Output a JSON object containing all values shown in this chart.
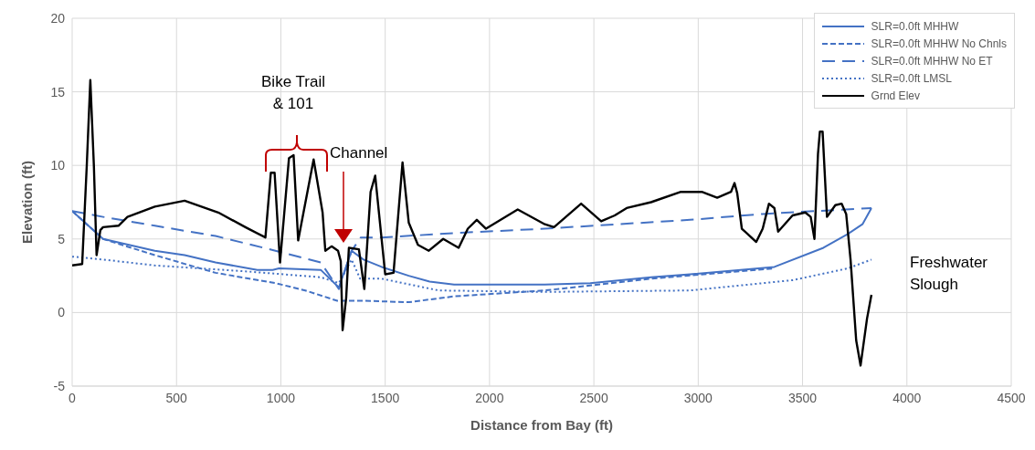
{
  "chart_data": {
    "type": "line",
    "xlabel": "Distance from Bay (ft)",
    "ylabel": "Elevation (ft)",
    "xlim": [
      0,
      4500
    ],
    "xticks": [
      0,
      500,
      1000,
      1500,
      2000,
      2500,
      3000,
      3500,
      4000,
      4500
    ],
    "ylim": [
      -5,
      20
    ],
    "yticks": [
      -5,
      0,
      5,
      10,
      15,
      20
    ],
    "grid": true,
    "legend": "top right",
    "marker": "none",
    "annotations": [
      "Bike Trail & 101",
      "Channel",
      "Freshwater Slough"
    ],
    "series": [
      {
        "name": "SLR=0.0ft MHHW",
        "color": "#4472c4",
        "line_style": "solid",
        "x": [
          0,
          148,
          396,
          539,
          687,
          887,
          961,
          991,
          1191,
          1278,
          1339,
          1396,
          1483,
          1613,
          1713,
          1830,
          2265,
          2483,
          2774,
          2961,
          3365,
          3600,
          3713,
          3787,
          3830
        ],
        "values": [
          6.9,
          5.0,
          4.2,
          3.9,
          3.4,
          2.9,
          2.9,
          3.0,
          2.9,
          1.7,
          4.2,
          3.6,
          3.1,
          2.5,
          2.1,
          1.9,
          1.9,
          2.0,
          2.4,
          2.6,
          3.1,
          4.4,
          5.3,
          6.0,
          7.1
        ]
      },
      {
        "name": "SLR=0.0ft MHHW No Chnls",
        "color": "#4472c4",
        "line_style": "dashed",
        "x": [
          0,
          148,
          396,
          687,
          974,
          1117,
          1270,
          1396,
          1613,
          1830,
          2265,
          2774,
          3365
        ],
        "values": [
          6.9,
          5.0,
          3.9,
          2.7,
          2.0,
          1.5,
          0.8,
          0.8,
          0.7,
          1.1,
          1.5,
          2.3,
          3.0
        ]
      },
      {
        "name": "SLR=0.0ft MHHW No ET",
        "color": "#4472c4",
        "line_style": "longdash",
        "x": [
          0,
          148,
          396,
          687,
          974,
          1191,
          1278,
          1339,
          1383,
          1483,
          1830,
          2265,
          2961,
          3309,
          3830
        ],
        "values": [
          6.9,
          6.5,
          5.9,
          5.2,
          4.2,
          3.4,
          1.6,
          4.2,
          5.1,
          5.1,
          5.4,
          5.7,
          6.3,
          6.7,
          7.1
        ]
      },
      {
        "name": "SLR=0.0ft LMSL",
        "color": "#4472c4",
        "line_style": "dotted",
        "x": [
          0,
          148,
          396,
          830,
          1191,
          1278,
          1339,
          1380,
          1483,
          1757,
          2265,
          2961,
          3452,
          3717,
          3830
        ],
        "values": [
          3.8,
          3.6,
          3.2,
          2.8,
          2.4,
          2.0,
          3.6,
          2.3,
          2.3,
          1.5,
          1.4,
          1.5,
          2.2,
          3.0,
          3.6
        ]
      },
      {
        "name": "Grnd Elev",
        "color": "#000000",
        "line_style": "solid",
        "x": [
          0,
          48,
          70,
          87,
          104,
          117,
          135,
          148,
          222,
          265,
          396,
          539,
          700,
          830,
          926,
          952,
          970,
          996,
          1039,
          1061,
          1083,
          1157,
          1200,
          1213,
          1243,
          1274,
          1287,
          1296,
          1313,
          1326,
          1374,
          1400,
          1430,
          1452,
          1500,
          1540,
          1583,
          1613,
          1657,
          1709,
          1778,
          1852,
          1896,
          1939,
          1983,
          2135,
          2265,
          2309,
          2439,
          2535,
          2600,
          2657,
          2774,
          2917,
          3017,
          3091,
          3157,
          3174,
          3187,
          3209,
          3278,
          3309,
          3339,
          3365,
          3383,
          3452,
          3513,
          3539,
          3557,
          3574,
          3583,
          3596,
          3617,
          3657,
          3687,
          3709,
          3730,
          3757,
          3778,
          3809,
          3830
        ],
        "values": [
          3.2,
          3.3,
          10,
          15.8,
          10,
          3.9,
          5.6,
          5.8,
          5.9,
          6.5,
          7.2,
          7.6,
          6.8,
          5.8,
          5.1,
          9.5,
          9.5,
          3.4,
          10.5,
          10.7,
          4.9,
          10.4,
          6.8,
          4.2,
          4.5,
          4.2,
          3.5,
          -1.2,
          1,
          4.4,
          4.3,
          1.6,
          8.2,
          9.3,
          2.6,
          2.7,
          10.2,
          6.1,
          4.6,
          4.2,
          5.0,
          4.4,
          5.7,
          6.3,
          5.7,
          7.0,
          6.0,
          5.8,
          7.4,
          6.2,
          6.6,
          7.1,
          7.5,
          8.2,
          8.2,
          7.8,
          8.2,
          8.8,
          8.1,
          5.7,
          4.8,
          5.7,
          7.4,
          7.1,
          5.5,
          6.6,
          6.8,
          6.5,
          5.0,
          10.8,
          12.3,
          12.3,
          6.5,
          7.3,
          7.4,
          6.7,
          3.6,
          -1.9,
          -3.6,
          -0.4,
          1.2
        ]
      }
    ]
  }
}
